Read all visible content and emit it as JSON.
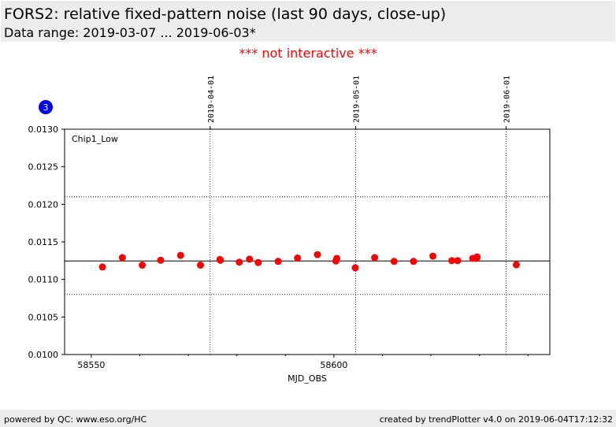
{
  "header": {
    "title": "FORS2: relative fixed-pattern noise (last 90 days, close-up)",
    "subtitle": "Data range: 2019-03-07 ... 2019-06-03*"
  },
  "notice": "*** not interactive ***",
  "badge": "3",
  "footer": {
    "left": "powered by QC: www.eso.org/HC",
    "right": "created by trendPlotter v4.0 on 2019-06-04T17:12:32"
  },
  "colors": {
    "point": "#ff0000",
    "badge": "#0000ee",
    "notice": "#ff0000",
    "header_bg": "#ececec"
  },
  "chart_data": {
    "type": "scatter",
    "panel_label": "Chip1_Low",
    "xlabel": "MJD_OBS",
    "ylabel": "",
    "xlim": [
      58544.5,
      58644.5
    ],
    "ylim": [
      0.01,
      0.013
    ],
    "x_ticks": [
      58550,
      58600
    ],
    "x_tick_labels": [
      "58550",
      "58600"
    ],
    "x_minor_ticks": [
      58560,
      58570,
      58580,
      58590,
      58610,
      58620,
      58630,
      58640
    ],
    "y_ticks": [
      0.01,
      0.0105,
      0.011,
      0.0115,
      0.012,
      0.0125,
      0.013
    ],
    "y_tick_labels": [
      "0.0100",
      "0.0105",
      "0.0110",
      "0.0115",
      "0.0120",
      "0.0125",
      "0.0130"
    ],
    "date_markers": [
      {
        "label": "2019-04-01",
        "mjd": 58574.5
      },
      {
        "label": "2019-05-01",
        "mjd": 58604.5
      },
      {
        "label": "2019-06-01",
        "mjd": 58635.5
      }
    ],
    "reference_lines": {
      "mean": 0.011245,
      "upper": 0.0121,
      "lower": 0.0108
    },
    "series": [
      {
        "x": [
          58552.3,
          58556.4,
          58560.5,
          58564.3,
          58568.4,
          58572.5,
          58576.5,
          58576.6,
          58580.5,
          58582.6,
          58584.4,
          58588.5,
          58592.5,
          58596.6,
          58600.4,
          58600.6,
          58604.4,
          58608.4,
          58612.4,
          58616.4,
          58620.4,
          58624.3,
          58625.5,
          58628.6,
          58629.4,
          58629.5,
          58637.6
        ],
        "y": [
          0.011165,
          0.01129,
          0.01119,
          0.011255,
          0.01132,
          0.01119,
          0.011265,
          0.011255,
          0.01123,
          0.01127,
          0.011225,
          0.01124,
          0.011285,
          0.01133,
          0.011245,
          0.01128,
          0.011155,
          0.01129,
          0.01124,
          0.01124,
          0.01131,
          0.01125,
          0.01125,
          0.01128,
          0.01128,
          0.0113,
          0.011195
        ]
      }
    ]
  }
}
